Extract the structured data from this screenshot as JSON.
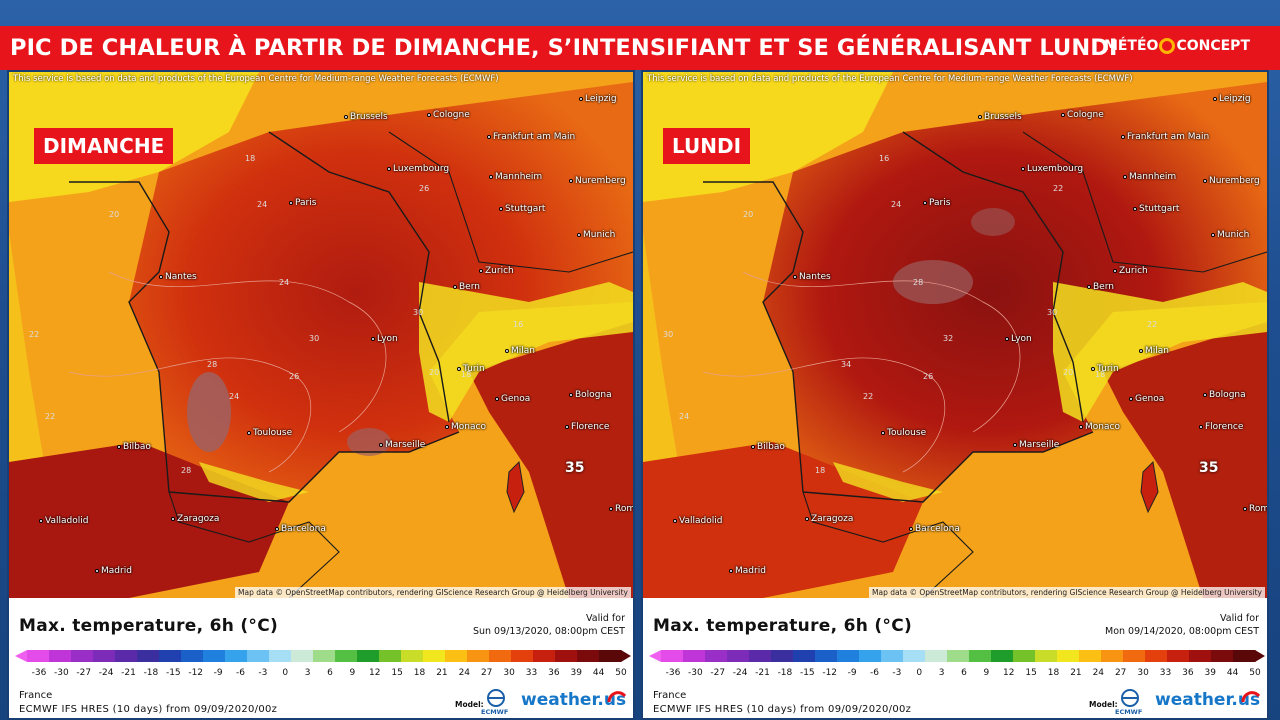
{
  "header": {
    "title": "PIC DE CHALEUR À PARTIR DE DIMANCHE, S’INTENSIFIANT ET SE GÉNÉRALISANT LUNDI",
    "brand_left": "MÉTÉO",
    "brand_right": "CONCEPT"
  },
  "colors": {
    "banner": "#e8141b",
    "background": "#1f4f91"
  },
  "panels": [
    {
      "day": "DIMANCHE",
      "credit_top": "This service is based on data and products of the European Centre for Medium-range Weather Forecasts (ECMWF)",
      "credit_bottom": "Map data © OpenStreetMap contributors, rendering GIScience Research Group @ Heidelberg University",
      "legend_title": "Max. temperature, 6h (°C)",
      "valid_label": "Valid for",
      "valid_time": "Sun 09/13/2020, 08:00pm CEST",
      "region": "France",
      "model_line": "ECMWF IFS HRES (10 days) from 09/09/2020/00z",
      "model_label": "Model:",
      "ecmwf_text": "ECMWF",
      "weather_us": "weather.us",
      "big_number": "35",
      "iso_labels": [
        "20",
        "18",
        "24",
        "26",
        "22",
        "28",
        "30",
        "24",
        "20",
        "18",
        "16",
        "22",
        "26",
        "24",
        "28",
        "30"
      ]
    },
    {
      "day": "LUNDI",
      "credit_top": "This service is based on data and products of the European Centre for Medium-range Weather Forecasts (ECMWF)",
      "credit_bottom": "Map data © OpenStreetMap contributors, rendering GIScience Research Group @ Heidelberg University",
      "legend_title": "Max. temperature, 6h (°C)",
      "valid_label": "Valid for",
      "valid_time": "Mon 09/14/2020, 08:00pm CEST",
      "region": "France",
      "model_line": "ECMWF IFS HRES (10 days) from 09/09/2020/00z",
      "model_label": "Model:",
      "ecmwf_text": "ECMWF",
      "weather_us": "weather.us",
      "big_number": "35",
      "iso_labels": [
        "20",
        "16",
        "24",
        "22",
        "30",
        "34",
        "32",
        "28",
        "20",
        "18",
        "22",
        "24",
        "26",
        "22",
        "18",
        "30"
      ]
    }
  ],
  "cities": [
    "Leipzig",
    "Brussels",
    "Cologne",
    "Frankfurt am Main",
    "Luxembourg",
    "Mannheim",
    "Nuremberg",
    "Paris",
    "Stuttgart",
    "Munich",
    "Nantes",
    "Zurich",
    "Bern",
    "Lyon",
    "Milan",
    "Turin",
    "Genoa",
    "Bologna",
    "Toulouse",
    "Marseille",
    "Monaco",
    "Florence",
    "Bilbao",
    "Valladolid",
    "Zaragoza",
    "Barcelona",
    "Madrid",
    "Rome"
  ],
  "colorbar": {
    "ticks": [
      "-36",
      "-30",
      "-27",
      "-24",
      "-21",
      "-18",
      "-15",
      "-12",
      "-9",
      "-6",
      "-3",
      "0",
      "3",
      "6",
      "9",
      "12",
      "15",
      "18",
      "21",
      "24",
      "27",
      "30",
      "33",
      "36",
      "39",
      "44",
      "50"
    ],
    "colors": [
      "#e34ce8",
      "#c035d8",
      "#9a2fc8",
      "#7c2cb8",
      "#5a2aa8",
      "#3b2fa0",
      "#2140b0",
      "#1b5fc8",
      "#1f80de",
      "#35a3ec",
      "#6cc2f2",
      "#a6def5",
      "#cde9d8",
      "#9edc8a",
      "#53c044",
      "#1e9d2a",
      "#74c12a",
      "#c8dc28",
      "#f2e61e",
      "#fcc014",
      "#f79512",
      "#f26a10",
      "#e3400e",
      "#c8200e",
      "#a0100e",
      "#7a0a0c",
      "#5a070a"
    ]
  }
}
